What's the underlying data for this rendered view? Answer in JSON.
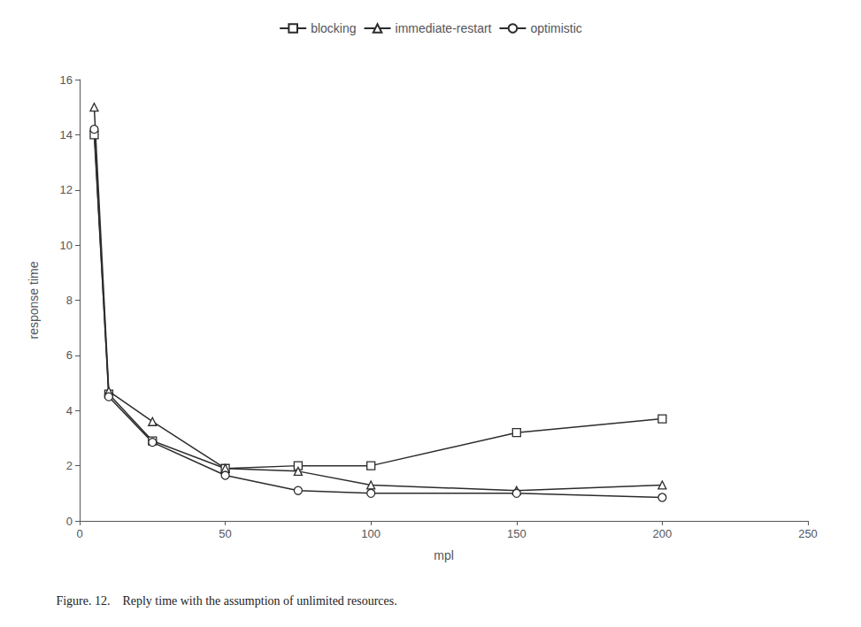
{
  "chart_data": {
    "type": "line",
    "title": "Figure. 12.    Reply time with the assumption of unlimited resources.",
    "xlabel": "mpl",
    "ylabel": "response time",
    "x": [
      5,
      10,
      25,
      50,
      75,
      100,
      150,
      200
    ],
    "series": [
      {
        "name": "blocking",
        "color": "#2c2c2c",
        "marker": "square",
        "values": [
          14.0,
          4.6,
          2.9,
          1.9,
          2.0,
          2.0,
          3.2,
          3.7
        ]
      },
      {
        "name": "immediate-restart",
        "color": "#2c2c2c",
        "marker": "triangle",
        "values": [
          15.0,
          4.7,
          3.6,
          1.9,
          1.8,
          1.3,
          1.1,
          1.3
        ]
      },
      {
        "name": "optimistic",
        "color": "#2c2c2c",
        "marker": "circle",
        "values": [
          14.2,
          4.5,
          2.85,
          1.65,
          1.1,
          1.0,
          1.0,
          0.85
        ]
      }
    ],
    "xlim": [
      0,
      250
    ],
    "xticks": [
      0,
      50,
      100,
      150,
      200,
      250
    ],
    "ylim": [
      0,
      16
    ],
    "yticks": [
      0,
      2,
      4,
      6,
      8,
      10,
      12,
      14,
      16
    ],
    "grid": false,
    "legend": "top"
  }
}
